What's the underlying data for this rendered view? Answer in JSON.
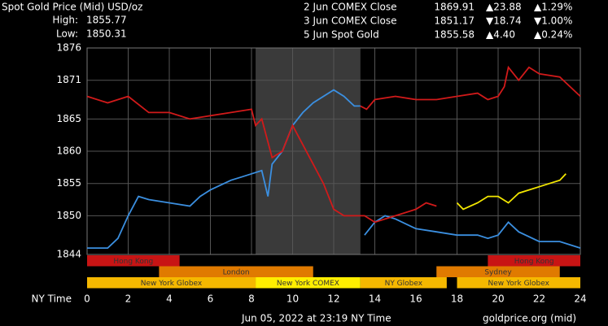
{
  "chart_data": {
    "type": "line",
    "title": "Spot Gold Price (Mid) USD/oz",
    "stats": [
      {
        "label": "High:",
        "value": "1855.77"
      },
      {
        "label": "Low:",
        "value": "1850.31"
      }
    ],
    "legend": [
      {
        "name": "2 Jun COMEX Close",
        "close": "1869.91",
        "change": "▲23.88",
        "pct": "▲1.29%",
        "color": "#3b8fe0",
        "change_color": "#3ecf3e"
      },
      {
        "name": "3 Jun COMEX Close",
        "close": "1851.17",
        "change": "▼18.74",
        "pct": "▼1.00%",
        "color": "#d11a1a",
        "change_color": "#d11a1a"
      },
      {
        "name": "5 Jun Spot Gold",
        "close": "1855.58",
        "change": "▲4.40",
        "pct": "▲0.24%",
        "color": "#f2e600",
        "change_color": "#3ecf3e"
      }
    ],
    "xlabel": "NY Time",
    "xlim": [
      0,
      24
    ],
    "xticks": [
      0,
      2,
      4,
      6,
      8,
      10,
      12,
      14,
      16,
      18,
      20,
      22,
      24
    ],
    "ylim": [
      1844,
      1876
    ],
    "yticks": [
      1844,
      1850,
      1855,
      1860,
      1865,
      1871,
      1876
    ],
    "grid": true,
    "highlight": [
      8.2,
      13.3
    ],
    "series": [
      {
        "name": "2 Jun COMEX Close",
        "color": "#3b8fe0",
        "x": [
          0,
          1,
          1.5,
          2,
          2.5,
          3,
          4,
          5,
          5.5,
          6,
          7,
          7.5,
          8,
          8.5,
          8.8,
          9,
          9.5,
          10,
          10.5,
          11,
          12,
          12.5,
          13,
          13.3,
          null,
          13.5,
          14,
          14.5,
          15,
          16,
          17,
          18,
          19,
          19.5,
          20,
          20.5,
          21,
          22,
          23,
          24
        ],
        "values": [
          1845,
          1845,
          1846.5,
          1850,
          1853,
          1852.5,
          1852,
          1851.5,
          1853,
          1854,
          1855.5,
          1856,
          1856.5,
          1857,
          1853,
          1858,
          1860,
          1864,
          1866,
          1867.5,
          1869.5,
          1868.5,
          1867,
          1867,
          null,
          1847,
          1849,
          1850,
          1849.5,
          1848,
          1847.5,
          1847,
          1847,
          1846.5,
          1847,
          1849,
          1847.5,
          1846,
          1846,
          1845
        ]
      },
      {
        "name": "3 Jun COMEX Close",
        "color": "#d11a1a",
        "x": [
          0,
          1,
          2,
          3,
          4,
          5,
          6,
          7,
          8,
          8.2,
          8.5,
          9,
          9.5,
          10,
          10.5,
          11,
          11.5,
          12,
          12.5,
          13,
          13.5,
          14,
          15,
          16,
          16.5,
          17,
          null,
          13.3,
          13.6,
          14,
          15,
          16,
          17,
          18,
          19,
          19.5,
          20,
          20.3,
          20.5,
          21,
          21.5,
          22,
          23,
          23.5,
          24
        ],
        "values": [
          1868.5,
          1867.5,
          1868.5,
          1866,
          1866,
          1865,
          1865.5,
          1866,
          1866.5,
          1864,
          1865,
          1859,
          1860,
          1864,
          1861,
          1858,
          1855,
          1851,
          1850,
          1850,
          1850,
          1849,
          1850,
          1851,
          1852,
          1851.5,
          null,
          1867,
          1866.5,
          1868,
          1868.5,
          1868,
          1868,
          1868.5,
          1869,
          1868,
          1868.5,
          1870,
          1873,
          1871,
          1873,
          1872,
          1871.5,
          1870,
          1868.5
        ]
      },
      {
        "name": "5 Jun Spot Gold",
        "color": "#f2e600",
        "x": [
          18,
          18.3,
          19,
          19.5,
          20,
          20.5,
          21,
          21.5,
          22,
          22.5,
          23,
          23.3
        ],
        "values": [
          1852,
          1851,
          1852,
          1853,
          1853,
          1852,
          1853.5,
          1854,
          1854.5,
          1855,
          1855.5,
          1856.5
        ]
      }
    ],
    "sessions": [
      {
        "label": "Hong Kong",
        "start": 0,
        "end": 4.5,
        "row": 0,
        "color": "#c81414"
      },
      {
        "label": "Hong Kong",
        "start": 19.5,
        "end": 24,
        "row": 0,
        "color": "#c81414"
      },
      {
        "label": "London",
        "start": 3.5,
        "end": 11,
        "row": 1,
        "color": "#e07a00"
      },
      {
        "label": "Sydney",
        "start": 17,
        "end": 23,
        "row": 1,
        "color": "#e07a00"
      },
      {
        "label": "New York Globex",
        "start": 0,
        "end": 8.2,
        "row": 2,
        "color": "#f5b800"
      },
      {
        "label": "New York COMEX",
        "start": 8.2,
        "end": 13.3,
        "row": 2,
        "color": "#ffee00"
      },
      {
        "label": "NY Globex",
        "start": 13.3,
        "end": 17.5,
        "row": 2,
        "color": "#f5b800"
      },
      {
        "label": "New York Globex",
        "start": 18,
        "end": 24,
        "row": 2,
        "color": "#f5b800"
      }
    ],
    "footer": "Jun 05, 2022 at 23:19 NY Time",
    "source": "goldprice.org (mid)"
  }
}
